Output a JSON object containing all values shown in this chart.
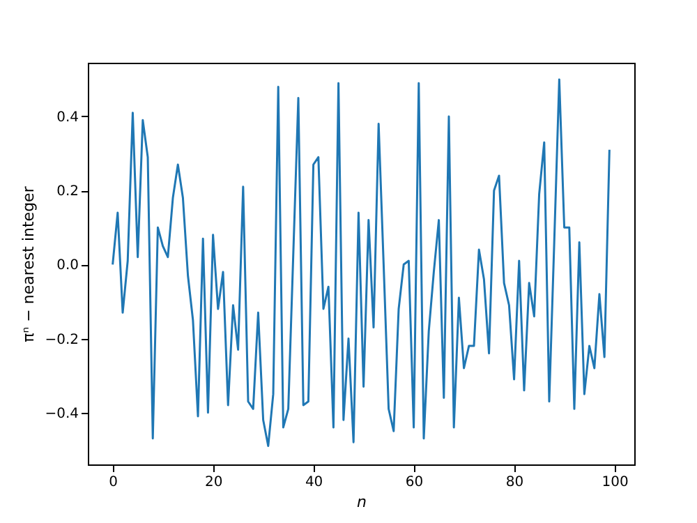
{
  "chart_data": {
    "type": "line",
    "xlabel": "n",
    "ylabel": "πⁿ − nearest integer",
    "x": [
      0,
      1,
      2,
      3,
      4,
      5,
      6,
      7,
      8,
      9,
      10,
      11,
      12,
      13,
      14,
      15,
      16,
      17,
      18,
      19,
      20,
      21,
      22,
      23,
      24,
      25,
      26,
      27,
      28,
      29,
      30,
      31,
      32,
      33,
      34,
      35,
      36,
      37,
      38,
      39,
      40,
      41,
      42,
      43,
      44,
      45,
      46,
      47,
      48,
      49,
      50,
      51,
      52,
      53,
      54,
      55,
      56,
      57,
      58,
      59,
      60,
      61,
      62,
      63,
      64,
      65,
      66,
      67,
      68,
      69,
      70,
      71,
      72,
      73,
      74,
      75,
      76,
      77,
      78,
      79,
      80,
      81,
      82,
      83,
      84,
      85,
      86,
      87,
      88,
      89,
      90,
      91,
      92,
      93,
      94,
      95,
      96,
      97,
      98,
      99
    ],
    "series": [
      {
        "color": "#1f77b4",
        "values": [
          0,
          0.14,
          -0.13,
          0.01,
          0.41,
          0.02,
          0.39,
          0.29,
          -0.47,
          0.1,
          0.05,
          0.02,
          0.18,
          0.27,
          0.18,
          -0.03,
          -0.15,
          -0.41,
          0.07,
          -0.4,
          0.08,
          -0.12,
          -0.02,
          -0.38,
          -0.11,
          -0.23,
          0.21,
          -0.37,
          -0.39,
          -0.13,
          -0.42,
          -0.49,
          -0.35,
          0.48,
          -0.44,
          -0.39,
          0.03,
          0.45,
          -0.38,
          -0.37,
          0.27,
          0.29,
          -0.12,
          -0.06,
          -0.44,
          0.49,
          -0.42,
          -0.2,
          -0.48,
          0.14,
          -0.33,
          0.12,
          -0.17,
          0.38,
          0,
          -0.39,
          -0.45,
          -0.12,
          0,
          0.01,
          -0.44,
          0.49,
          -0.47,
          -0.18,
          -0.02,
          0.12,
          -0.36,
          0.4,
          -0.44,
          -0.09,
          -0.28,
          -0.22,
          -0.22,
          0.04,
          -0.04,
          -0.24,
          0.2,
          0.24,
          -0.05,
          -0.11,
          -0.31,
          0.01,
          -0.34,
          -0.05,
          -0.14,
          0.19,
          0.33,
          -0.37,
          0.06,
          0.5,
          0.1,
          0.1,
          -0.39,
          0.06,
          -0.35,
          -0.22,
          -0.28,
          -0.08,
          -0.25,
          0.31
        ]
      }
    ],
    "xlim": [
      -4.95,
      103.95
    ],
    "ylim": [
      -0.54,
      0.545
    ],
    "xticks": [
      0,
      20,
      40,
      60,
      80,
      100
    ],
    "yticks": [
      {
        "value": -0.4,
        "label": "−0.4"
      },
      {
        "value": -0.2,
        "label": "−0.2"
      },
      {
        "value": 0,
        "label": "0.0"
      },
      {
        "value": 0.2,
        "label": "0.2"
      },
      {
        "value": 0.4,
        "label": "0.4"
      }
    ],
    "grid": false,
    "legend": false
  }
}
